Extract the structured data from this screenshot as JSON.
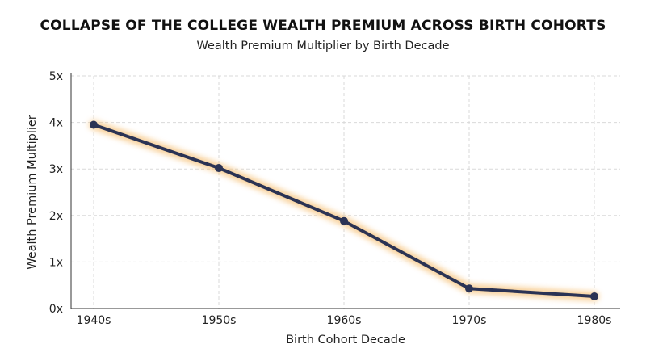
{
  "chart_data": {
    "type": "line",
    "title": "COLLAPSE OF THE COLLEGE WEALTH PREMIUM ACROSS BIRTH COHORTS",
    "subtitle": "Wealth Premium Multiplier by Birth Decade",
    "xlabel": "Birth Cohort Decade",
    "ylabel": "Wealth Premium Multiplier",
    "categories": [
      "1940s",
      "1950s",
      "1960s",
      "1970s",
      "1980s"
    ],
    "values": [
      3.95,
      3.02,
      1.88,
      0.43,
      0.26
    ],
    "ylim": [
      0,
      5
    ],
    "yticks": [
      {
        "value": 0,
        "label": "0x"
      },
      {
        "value": 1,
        "label": "1x"
      },
      {
        "value": 2,
        "label": "2x"
      },
      {
        "value": 3,
        "label": "3x"
      },
      {
        "value": 4,
        "label": "4x"
      },
      {
        "value": 5,
        "label": "5x"
      }
    ],
    "grid": true,
    "colors": {
      "line": "#2b3354",
      "glow": "#f6c27a",
      "grid": "#d9d9d9",
      "axis": "#333333"
    }
  }
}
